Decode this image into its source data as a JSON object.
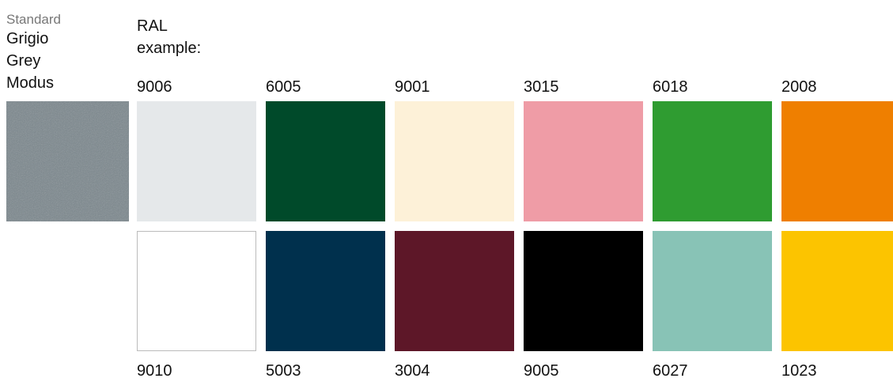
{
  "standard": {
    "label": "Standard",
    "name": [
      "Grigio",
      "Grey",
      "Modus"
    ],
    "color": "#7a868c"
  },
  "ral": {
    "label": [
      "RAL",
      "example:"
    ],
    "top": [
      {
        "code": "9006",
        "color": "#e5e8ea"
      },
      {
        "code": "6005",
        "color": "#004a2a"
      },
      {
        "code": "9001",
        "color": "#fdf1d8"
      },
      {
        "code": "3015",
        "color": "#ef9ca6"
      },
      {
        "code": "6018",
        "color": "#2f9c31"
      },
      {
        "code": "2008",
        "color": "#ef7f00"
      }
    ],
    "bottom": [
      {
        "code": "9010",
        "color": "#ffffff"
      },
      {
        "code": "5003",
        "color": "#00304d"
      },
      {
        "code": "3004",
        "color": "#5d1728"
      },
      {
        "code": "9005",
        "color": "#000000"
      },
      {
        "code": "6027",
        "color": "#88c3b6"
      },
      {
        "code": "1023",
        "color": "#fcc400"
      }
    ]
  }
}
